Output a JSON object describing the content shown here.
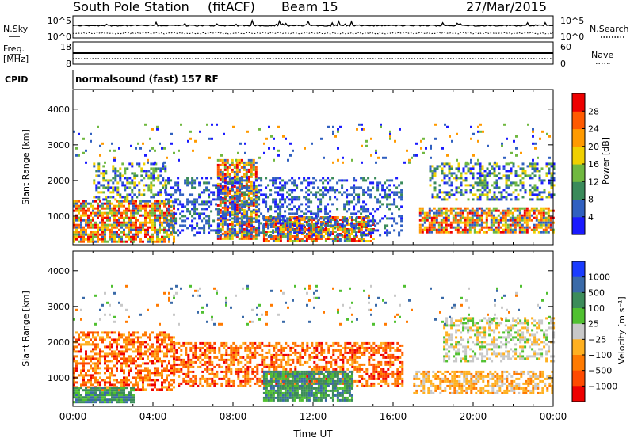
{
  "header": {
    "station": "South Pole Station",
    "mode": "(fitACF)",
    "beam": "Beam 15",
    "date": "27/Mar/2015"
  },
  "top_panels": {
    "nsky_label": "N.Sky",
    "nsearch_label": "N.Search",
    "power_ticks_left": [
      "10^5",
      "10^0"
    ],
    "power_ticks_right": [
      "10^5",
      "10^0"
    ],
    "freq_label_line1": "Freq.",
    "freq_label_line2": "[MHz]",
    "freq_ticks": [
      "18",
      "8"
    ],
    "nave_ticks": [
      "60",
      "0"
    ],
    "nave_label": "Nave",
    "cpid_label": "CPID",
    "cpid_text": "normalsound (fast) 157 RF"
  },
  "chart_data": [
    {
      "type": "heatmap",
      "name": "power",
      "ylabel": "Slant Range [km]",
      "xlabel": "",
      "y_ticks": [
        "1000",
        "2000",
        "3000",
        "4000"
      ],
      "ylim": [
        200,
        4550
      ],
      "xlim_hours": [
        0,
        24
      ],
      "colorbar_label": "Power [dB]",
      "colorbar_ticks": [
        "4",
        "8",
        "12",
        "16",
        "20",
        "24",
        "28"
      ],
      "colorbar_colors": [
        "#1a1aff",
        "#3060c0",
        "#3a8a5a",
        "#70b840",
        "#f0d000",
        "#ff9a00",
        "#ff5a00",
        "#ee0000"
      ],
      "echo_regions": [
        {
          "t0": 0.0,
          "t1": 5.1,
          "r0": 280,
          "r1": 1450,
          "level": "strong"
        },
        {
          "t0": 1.0,
          "t1": 4.6,
          "r0": 1450,
          "r1": 2500,
          "level": "medium"
        },
        {
          "t0": 7.2,
          "t1": 9.2,
          "r0": 400,
          "r1": 2600,
          "level": "strong"
        },
        {
          "t0": 9.5,
          "t1": 15.0,
          "r0": 320,
          "r1": 1000,
          "level": "strong"
        },
        {
          "t0": 4.6,
          "t1": 16.4,
          "r0": 500,
          "r1": 2100,
          "level": "weak"
        },
        {
          "t0": 17.3,
          "t1": 24.0,
          "r0": 550,
          "r1": 1250,
          "level": "strong"
        },
        {
          "t0": 17.8,
          "t1": 24.0,
          "r0": 1500,
          "r1": 2500,
          "level": "medium"
        },
        {
          "t0": 0.0,
          "t1": 24.0,
          "r0": 2500,
          "r1": 3600,
          "level": "sparse"
        }
      ]
    },
    {
      "type": "heatmap",
      "name": "velocity",
      "ylabel": "Slant Range [km]",
      "xlabel": "Time UT",
      "x_ticks": [
        "00:00",
        "04:00",
        "08:00",
        "12:00",
        "16:00",
        "20:00",
        "00:00"
      ],
      "y_ticks": [
        "1000",
        "2000",
        "3000",
        "4000"
      ],
      "ylim": [
        200,
        4550
      ],
      "xlim_hours": [
        0,
        24
      ],
      "colorbar_label": "Velocity [m s⁻¹]",
      "colorbar_ticks": [
        "1000",
        "500",
        "100",
        "25",
        "−25",
        "−100",
        "−500",
        "−1000"
      ],
      "colorbar_colors": [
        "#1a3cff",
        "#3a6aa8",
        "#3c8c5a",
        "#50c030",
        "#c8c8c8",
        "#ffb020",
        "#ff7a00",
        "#ff4a00",
        "#ee0000"
      ],
      "echo_regions": [
        {
          "t0": 0.0,
          "t1": 5.1,
          "r0": 700,
          "r1": 2300,
          "kind": "away"
        },
        {
          "t0": 0.0,
          "t1": 3.0,
          "r0": 350,
          "r1": 750,
          "kind": "toward"
        },
        {
          "t0": 5.0,
          "t1": 16.5,
          "r0": 800,
          "r1": 2000,
          "kind": "away"
        },
        {
          "t0": 9.5,
          "t1": 14.0,
          "r0": 350,
          "r1": 1200,
          "kind": "toward"
        },
        {
          "t0": 17.0,
          "t1": 24.0,
          "r0": 550,
          "r1": 1200,
          "kind": "away_weak"
        },
        {
          "t0": 18.5,
          "t1": 24.0,
          "r0": 1500,
          "r1": 2700,
          "kind": "ground"
        },
        {
          "t0": 0.0,
          "t1": 24.0,
          "r0": 2500,
          "r1": 3600,
          "kind": "sparse"
        }
      ]
    }
  ]
}
